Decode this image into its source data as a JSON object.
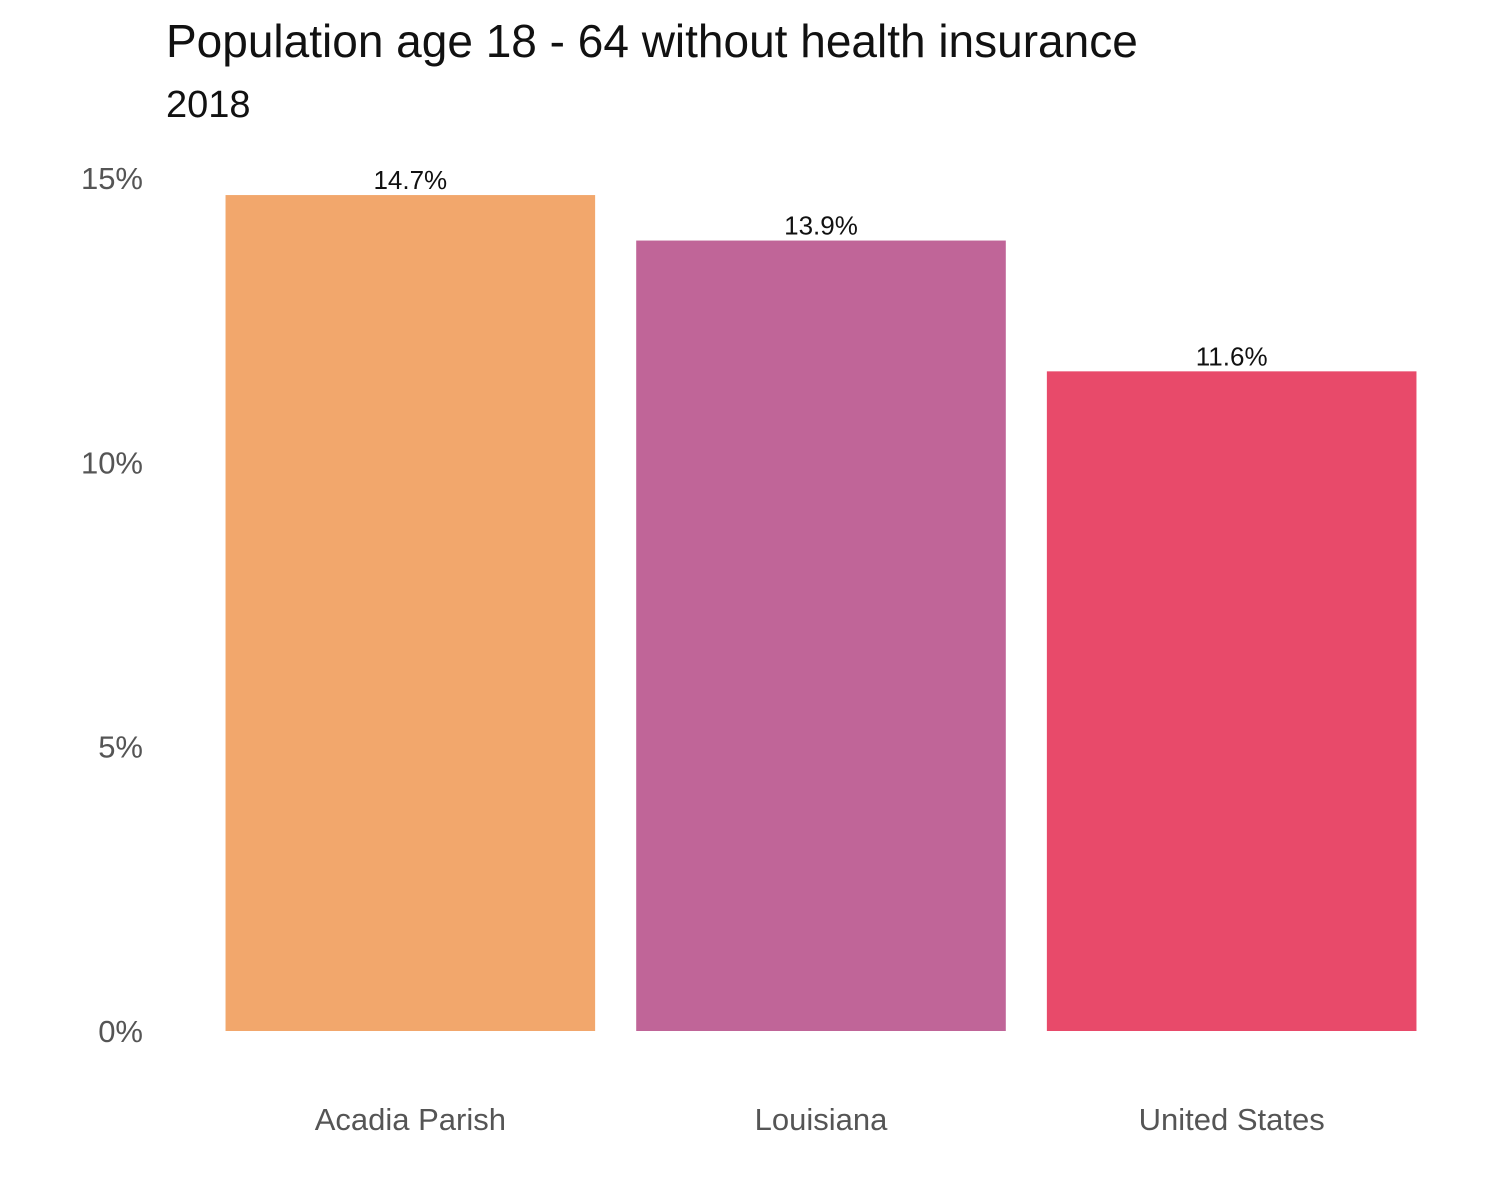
{
  "chart_data": {
    "type": "bar",
    "title": "Population age 18 - 64 without health insurance",
    "subtitle": "2018",
    "xlabel": "",
    "ylabel": "",
    "categories": [
      "Acadia Parish",
      "Louisiana",
      "United States"
    ],
    "values": [
      14.7,
      13.9,
      11.6
    ],
    "data_labels": [
      "14.7%",
      "13.9%",
      "11.6%"
    ],
    "colors": [
      "#f2a76c",
      "#c06598",
      "#e84a6a"
    ],
    "ylim": [
      0,
      15
    ],
    "yticks": [
      0,
      5,
      10,
      15
    ],
    "ytick_labels": [
      "0%",
      "5%",
      "10%",
      "15%"
    ],
    "grid": false,
    "legend": "none"
  }
}
